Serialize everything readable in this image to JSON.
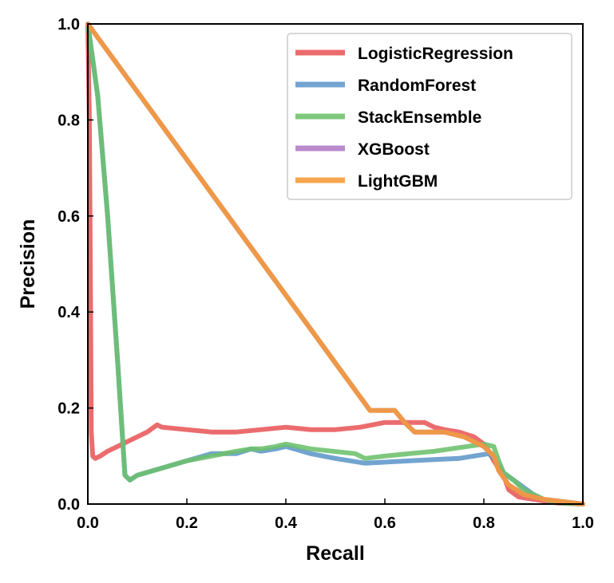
{
  "chart_data": {
    "type": "line",
    "title": "",
    "xlabel": "Recall",
    "ylabel": "Precision",
    "xlim": [
      0,
      1
    ],
    "ylim": [
      0,
      1
    ],
    "xticks": [
      "0.0",
      "0.2",
      "0.4",
      "0.6",
      "0.8",
      "1.0"
    ],
    "yticks": [
      "0.0",
      "0.2",
      "0.4",
      "0.6",
      "0.8",
      "1.0"
    ],
    "grid": false,
    "legend_position": "top-right",
    "series": [
      {
        "name": "LogisticRegression",
        "color": "#e8585a",
        "points": [
          [
            1.0,
            0.0
          ],
          [
            0.95,
            0.002
          ],
          [
            0.9,
            0.01
          ],
          [
            0.87,
            0.015
          ],
          [
            0.85,
            0.03
          ],
          [
            0.84,
            0.06
          ],
          [
            0.83,
            0.075
          ],
          [
            0.82,
            0.09
          ],
          [
            0.81,
            0.11
          ],
          [
            0.8,
            0.125
          ],
          [
            0.78,
            0.14
          ],
          [
            0.75,
            0.15
          ],
          [
            0.72,
            0.155
          ],
          [
            0.7,
            0.16
          ],
          [
            0.68,
            0.17
          ],
          [
            0.65,
            0.17
          ],
          [
            0.6,
            0.17
          ],
          [
            0.55,
            0.16
          ],
          [
            0.5,
            0.155
          ],
          [
            0.45,
            0.155
          ],
          [
            0.4,
            0.16
          ],
          [
            0.35,
            0.155
          ],
          [
            0.3,
            0.15
          ],
          [
            0.25,
            0.15
          ],
          [
            0.2,
            0.155
          ],
          [
            0.15,
            0.16
          ],
          [
            0.14,
            0.165
          ],
          [
            0.12,
            0.15
          ],
          [
            0.1,
            0.14
          ],
          [
            0.08,
            0.13
          ],
          [
            0.06,
            0.12
          ],
          [
            0.04,
            0.11
          ],
          [
            0.025,
            0.1
          ],
          [
            0.015,
            0.095
          ],
          [
            0.01,
            0.1
          ],
          [
            0.008,
            0.13
          ],
          [
            0.007,
            0.15
          ],
          [
            0.005,
            0.5
          ],
          [
            0.003,
            0.8
          ],
          [
            0.0,
            1.0
          ]
        ]
      },
      {
        "name": "RandomForest",
        "color": "#5e97c9",
        "points": [
          [
            1.0,
            0.0
          ],
          [
            0.95,
            0.003
          ],
          [
            0.92,
            0.01
          ],
          [
            0.9,
            0.02
          ],
          [
            0.88,
            0.035
          ],
          [
            0.86,
            0.05
          ],
          [
            0.84,
            0.065
          ],
          [
            0.83,
            0.08
          ],
          [
            0.82,
            0.095
          ],
          [
            0.81,
            0.105
          ],
          [
            0.75,
            0.095
          ],
          [
            0.65,
            0.09
          ],
          [
            0.56,
            0.085
          ],
          [
            0.5,
            0.095
          ],
          [
            0.45,
            0.105
          ],
          [
            0.4,
            0.12
          ],
          [
            0.38,
            0.115
          ],
          [
            0.35,
            0.11
          ],
          [
            0.33,
            0.115
          ],
          [
            0.3,
            0.105
          ],
          [
            0.25,
            0.105
          ],
          [
            0.2,
            0.09
          ],
          [
            0.15,
            0.075
          ],
          [
            0.1,
            0.06
          ],
          [
            0.085,
            0.05
          ],
          [
            0.075,
            0.06
          ],
          [
            0.06,
            0.3
          ],
          [
            0.04,
            0.6
          ],
          [
            0.02,
            0.85
          ],
          [
            0.0,
            1.0
          ]
        ]
      },
      {
        "name": "StackEnsemble",
        "color": "#6cc06c",
        "points": [
          [
            1.0,
            0.0
          ],
          [
            0.95,
            0.003
          ],
          [
            0.92,
            0.01
          ],
          [
            0.9,
            0.02
          ],
          [
            0.88,
            0.03
          ],
          [
            0.86,
            0.05
          ],
          [
            0.84,
            0.065
          ],
          [
            0.83,
            0.09
          ],
          [
            0.82,
            0.12
          ],
          [
            0.8,
            0.125
          ],
          [
            0.7,
            0.11
          ],
          [
            0.6,
            0.1
          ],
          [
            0.56,
            0.095
          ],
          [
            0.54,
            0.105
          ],
          [
            0.45,
            0.115
          ],
          [
            0.4,
            0.125
          ],
          [
            0.38,
            0.12
          ],
          [
            0.35,
            0.115
          ],
          [
            0.33,
            0.115
          ],
          [
            0.3,
            0.11
          ],
          [
            0.25,
            0.1
          ],
          [
            0.2,
            0.09
          ],
          [
            0.15,
            0.075
          ],
          [
            0.1,
            0.06
          ],
          [
            0.085,
            0.05
          ],
          [
            0.075,
            0.06
          ],
          [
            0.06,
            0.3
          ],
          [
            0.04,
            0.6
          ],
          [
            0.02,
            0.85
          ],
          [
            0.0,
            1.0
          ]
        ]
      },
      {
        "name": "XGBoost",
        "color": "#b07cc4",
        "points": [
          [
            1.0,
            0.0
          ],
          [
            0.92,
            0.01
          ],
          [
            0.88,
            0.02
          ],
          [
            0.85,
            0.04
          ],
          [
            0.83,
            0.07
          ],
          [
            0.82,
            0.1
          ],
          [
            0.8,
            0.12
          ],
          [
            0.76,
            0.14
          ],
          [
            0.72,
            0.15
          ],
          [
            0.66,
            0.15
          ],
          [
            0.64,
            0.17
          ],
          [
            0.62,
            0.195
          ],
          [
            0.57,
            0.195
          ],
          [
            0.0,
            1.0
          ]
        ]
      },
      {
        "name": "LightGBM",
        "color": "#f59a36",
        "points": [
          [
            1.0,
            0.0
          ],
          [
            0.92,
            0.01
          ],
          [
            0.88,
            0.02
          ],
          [
            0.85,
            0.04
          ],
          [
            0.83,
            0.07
          ],
          [
            0.82,
            0.1
          ],
          [
            0.8,
            0.12
          ],
          [
            0.76,
            0.14
          ],
          [
            0.72,
            0.15
          ],
          [
            0.66,
            0.15
          ],
          [
            0.64,
            0.17
          ],
          [
            0.62,
            0.195
          ],
          [
            0.57,
            0.195
          ],
          [
            0.0,
            1.0
          ]
        ]
      }
    ]
  }
}
